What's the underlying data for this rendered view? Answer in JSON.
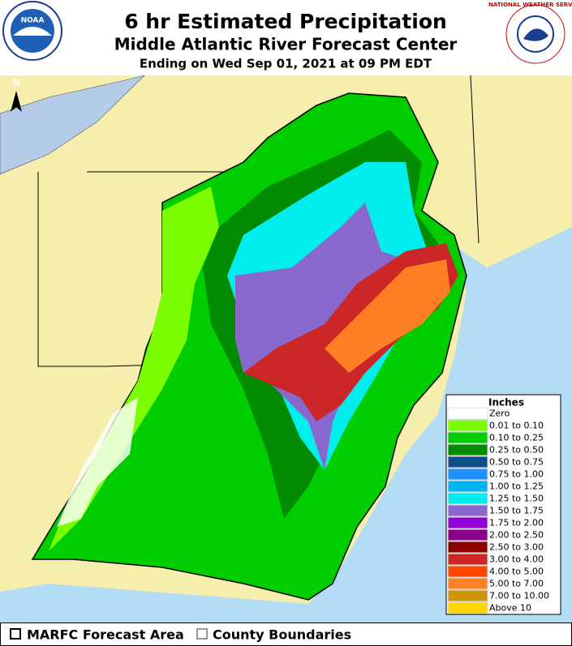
{
  "header": {
    "title": "6 hr Estimated Precipitation",
    "subtitle": "Middle Atlantic River Forecast Center",
    "date_line": "Ending on Wed Sep 01, 2021 at 09 PM EDT"
  },
  "logos": {
    "noaa": "NOAA",
    "nws": "NATIONAL WEATHER SERVICE"
  },
  "north_arrow": "N",
  "legend": {
    "title": "Inches",
    "items": [
      {
        "label": "Zero",
        "color": "#ffffff"
      },
      {
        "label": "0.01 to 0.10",
        "color": "#7cfc00"
      },
      {
        "label": "0.10 to 0.25",
        "color": "#00cd00"
      },
      {
        "label": "0.25 to 0.50",
        "color": "#008b00"
      },
      {
        "label": "0.50 to 0.75",
        "color": "#104e8b"
      },
      {
        "label": "0.75 to 1.00",
        "color": "#1e90ff"
      },
      {
        "label": "1.00 to 1.25",
        "color": "#00b2ee"
      },
      {
        "label": "1.25 to 1.50",
        "color": "#00eeee"
      },
      {
        "label": "1.50 to 1.75",
        "color": "#8968cd"
      },
      {
        "label": "1.75 to 2.00",
        "color": "#9400d3"
      },
      {
        "label": "2.00 to 2.50",
        "color": "#8b008b"
      },
      {
        "label": "2.50 to 3.00",
        "color": "#8b0000"
      },
      {
        "label": "3.00 to 4.00",
        "color": "#cd2626"
      },
      {
        "label": "4.00 to 5.00",
        "color": "#ff4500"
      },
      {
        "label": "5.00 to 7.00",
        "color": "#ff7f24"
      },
      {
        "label": "7.00 to 10.00",
        "color": "#cd950c"
      },
      {
        "label": "Above 10",
        "color": "#ffd700"
      }
    ]
  },
  "footer": {
    "forecast_area": "MARFC Forecast Area",
    "county_boundaries": "County Boundaries"
  }
}
